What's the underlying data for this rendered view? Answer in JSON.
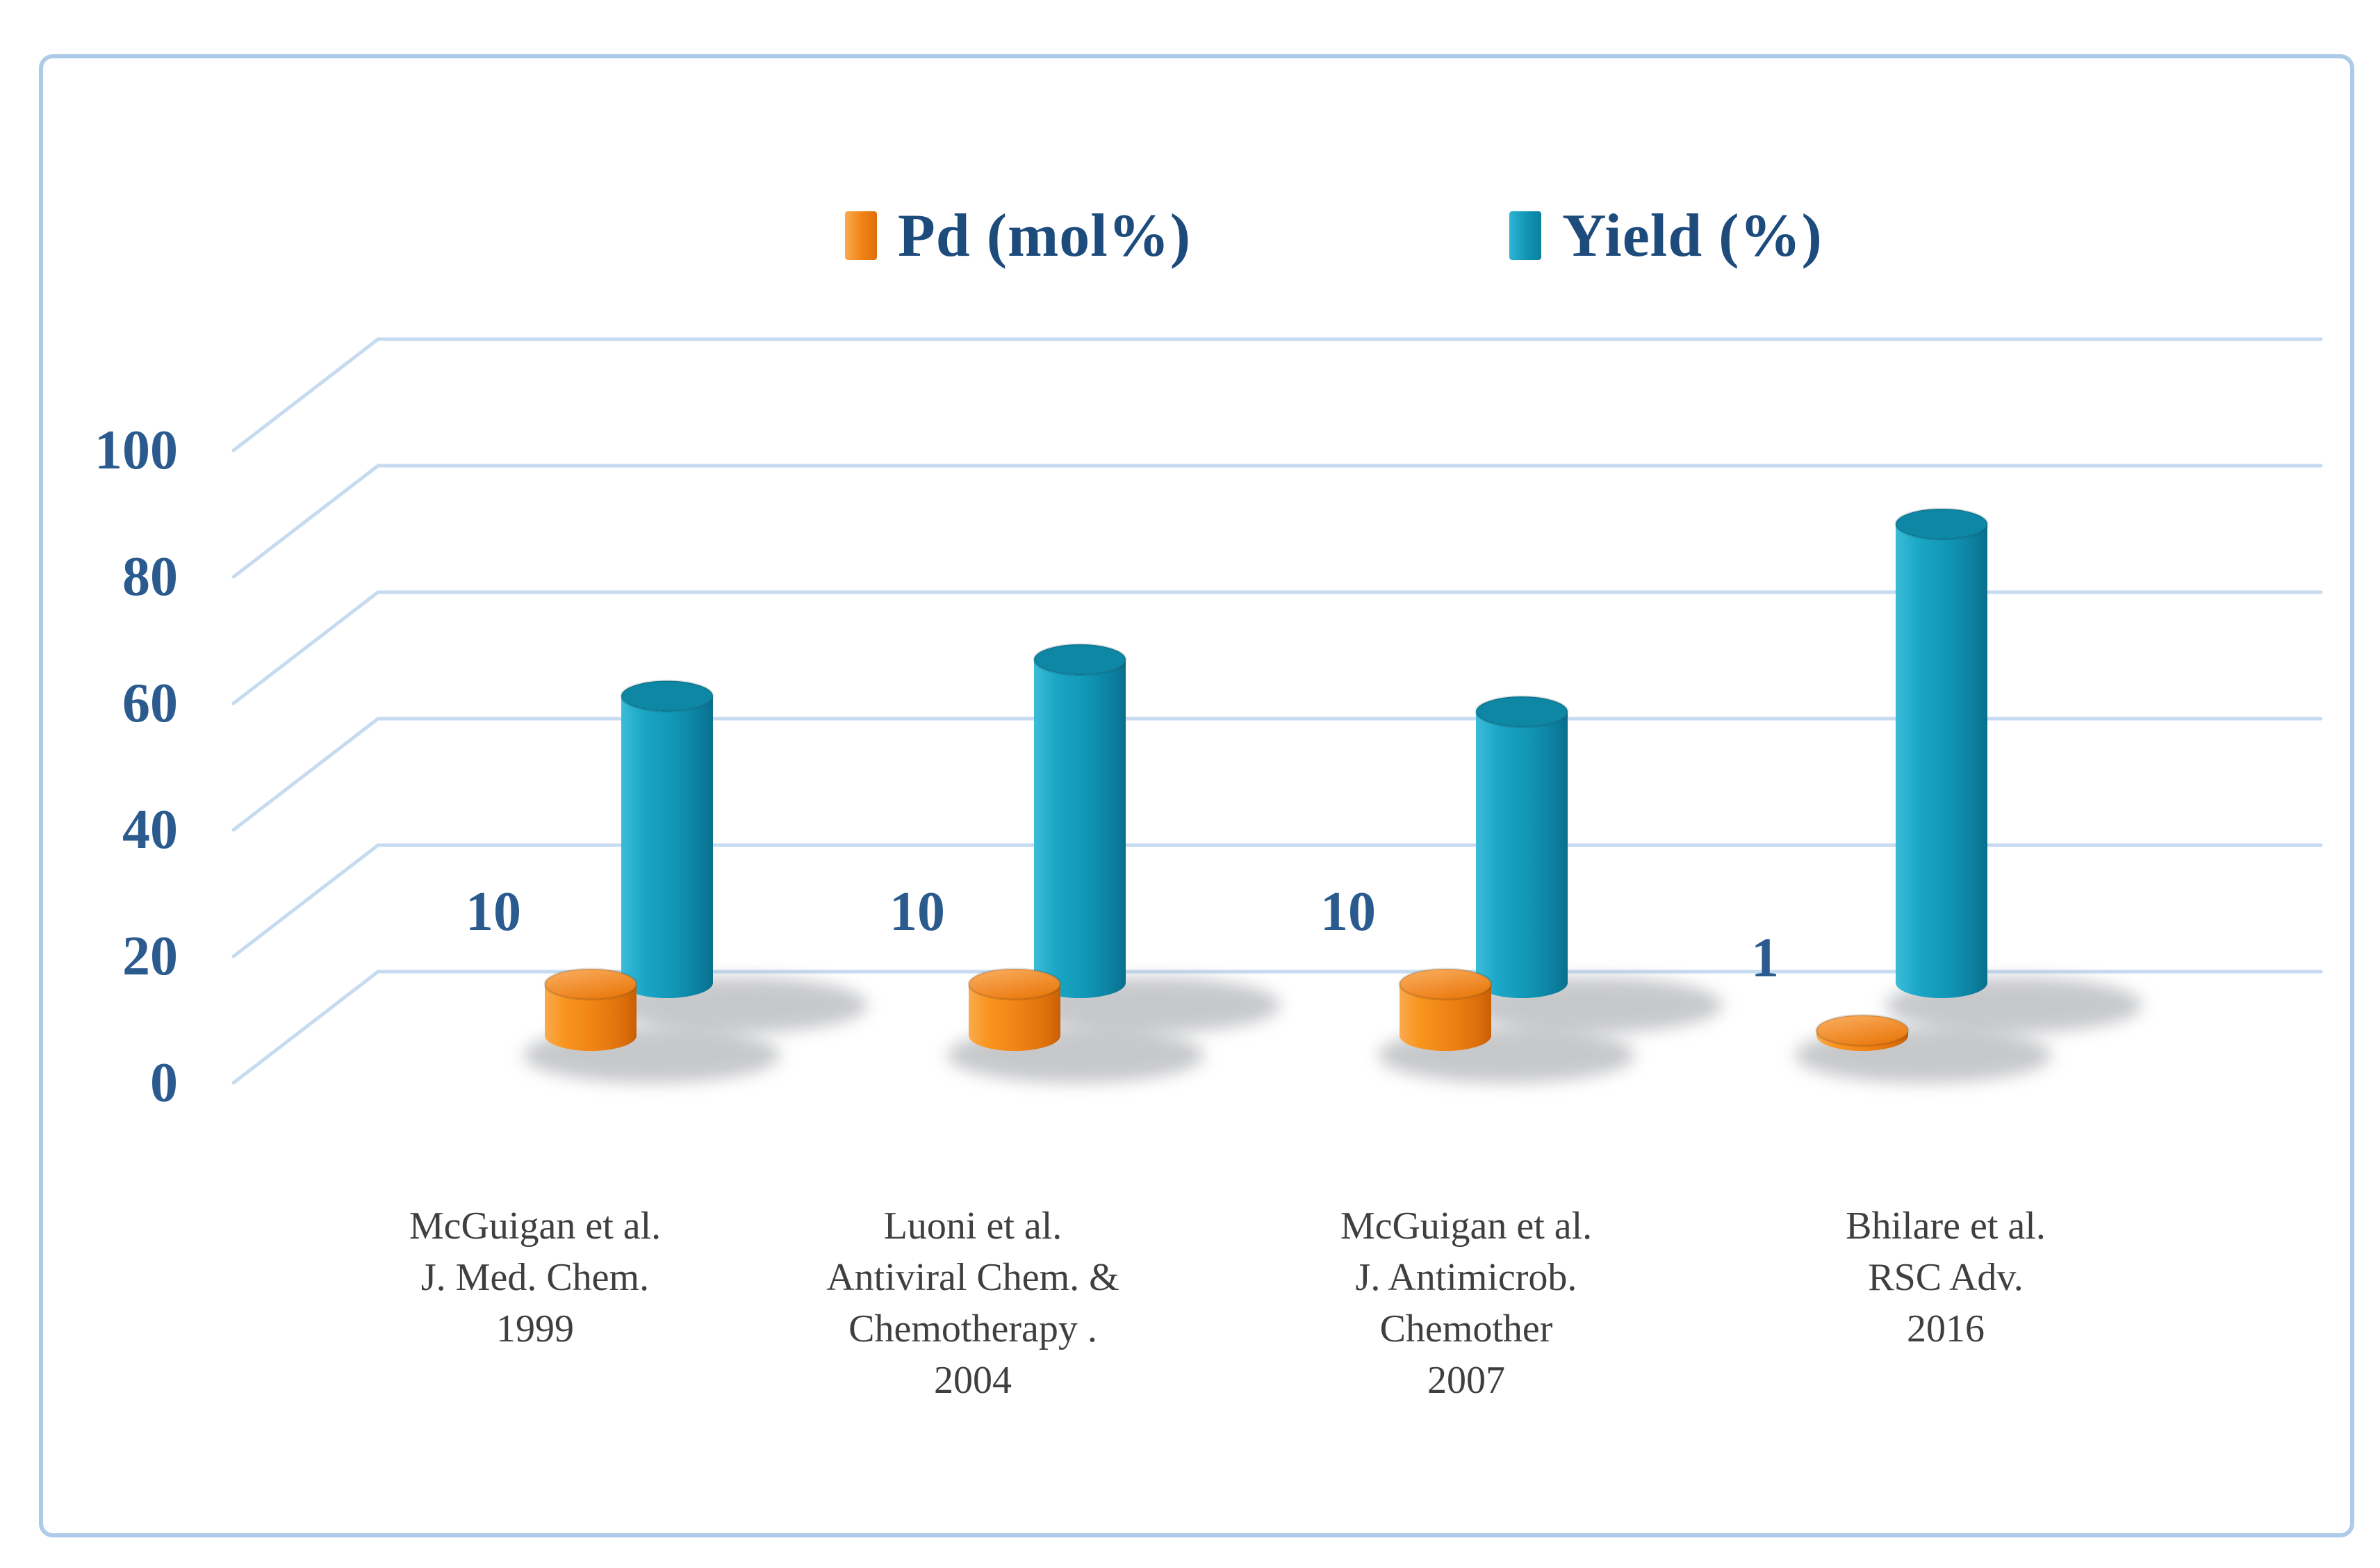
{
  "figure": {
    "kind": "3d-cylinder-bar-chart",
    "background": "#ffffff"
  },
  "colors": {
    "navy_text": "#1d4b7c",
    "tick_text": "#2a5a8e",
    "data_label_text": "#2a5a8e",
    "category_text": "#3f3f3f",
    "gridline": "#c6dbf0",
    "frame_border": "#adcbe8",
    "shadow": "#8f9297",
    "orange": "#f5821f",
    "teal": "#129dbd"
  },
  "chart_data": {
    "type": "bar",
    "subtype": "3d-cylinder",
    "title": "",
    "legend_position": "top-center",
    "grid": true,
    "ylim": [
      0,
      100
    ],
    "yticks": [
      0,
      20,
      40,
      60,
      80,
      100
    ],
    "categories": [
      [
        "McGuigan et al.",
        "J. Med. Chem.",
        "1999"
      ],
      [
        "Luoni et al.",
        "Antiviral Chem. &",
        "Chemotherapy .",
        "2004"
      ],
      [
        "McGuigan et al.",
        "J. Antimicrob.",
        "Chemother",
        "2007"
      ],
      [
        "Bhilare et al.",
        "RSC Adv.",
        "2016"
      ]
    ],
    "series": [
      {
        "name": "Pd (mol%)",
        "color": "#f5821f",
        "values": [
          10,
          10,
          10,
          1
        ],
        "data_labels": [
          "10",
          "10",
          "10",
          "1"
        ]
      },
      {
        "name": "Yield (%)",
        "color": "#129dbd",
        "values": [
          55,
          62,
          52,
          88
        ],
        "data_labels": null
      }
    ]
  }
}
